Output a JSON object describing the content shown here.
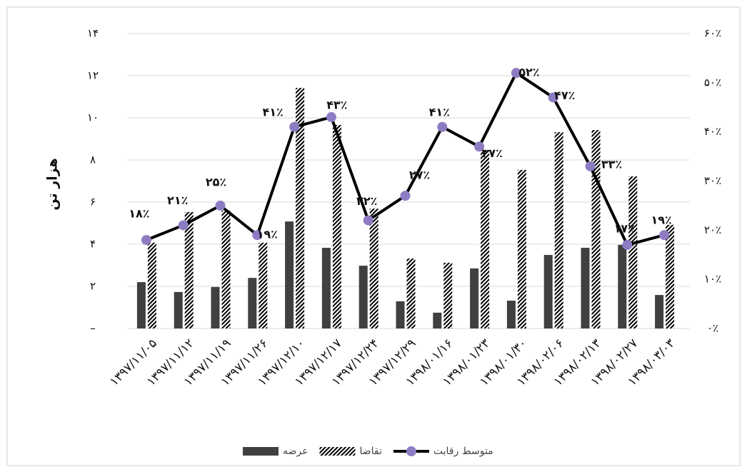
{
  "chart_data": {
    "type": "bar-line",
    "y_label": "هزار تن",
    "categories": [
      "۱۳۹۷/۱۱/۰۵",
      "۱۳۹۷/۱۱/۱۲",
      "۱۳۹۷/۱۱/۱۹",
      "۱۳۹۷/۱۱/۲۶",
      "۱۳۹۷/۱۲/۱۰",
      "۱۳۹۷/۱۲/۱۷",
      "۱۳۹۷/۱۲/۲۴",
      "۱۳۹۷/۱۲/۲۹",
      "۱۳۹۸/۰۱/۱۶",
      "۱۳۹۸/۰۱/۲۳",
      "۱۳۹۸/۰۱/۳۰",
      "۱۳۹۸/۰۲/۰۶",
      "۱۳۹۸/۰۲/۱۳",
      "۱۳۹۸/۰۲/۲۷",
      "۱۳۹۸/۰۳/۰۳"
    ],
    "series": [
      {
        "name": "عرضه",
        "type": "bar",
        "color": "#404040",
        "values": [
          2.2,
          1.73,
          1.97,
          2.4,
          5.08,
          3.83,
          2.98,
          1.29,
          0.75,
          2.85,
          1.32,
          3.49,
          3.83,
          3.97,
          1.59
        ]
      },
      {
        "name": "تقاضا",
        "type": "bar",
        "hatched": true,
        "color": "#000000",
        "values": [
          4.07,
          5.53,
          5.59,
          4.07,
          11.42,
          9.66,
          5.69,
          3.32,
          3.12,
          8.47,
          7.53,
          9.32,
          9.42,
          7.22,
          4.92
        ]
      },
      {
        "name": "متوسط رقابت",
        "type": "line",
        "axis": "y2",
        "color": "#000000",
        "marker_color": "#8e7cc3",
        "values": [
          18,
          21,
          25,
          19,
          41,
          43,
          22,
          27,
          41,
          37,
          52,
          47,
          33,
          17,
          19
        ],
        "value_labels": [
          "۱۸٪",
          "۲۱٪",
          "۲۵٪",
          "۱۹٪",
          "۴۱٪",
          "۴۳٪",
          "۲۲٪",
          "۲۷٪",
          "۴۱٪",
          "۳۷٪",
          "۵۲٪",
          "۴۷٪",
          "۳۳٪",
          "۱۷٪",
          "۱۹٪"
        ]
      }
    ],
    "ylim": [
      0,
      14
    ],
    "yticks": [
      {
        "value": 0,
        "label": "–"
      },
      {
        "value": 2,
        "label": "۲"
      },
      {
        "value": 4,
        "label": "۴"
      },
      {
        "value": 6,
        "label": "۶"
      },
      {
        "value": 8,
        "label": "۸"
      },
      {
        "value": 10,
        "label": "۱۰"
      },
      {
        "value": 12,
        "label": "۱۲"
      },
      {
        "value": 14,
        "label": "۱۴"
      }
    ],
    "y2lim": [
      0,
      60
    ],
    "y2ticks": [
      {
        "value": 0,
        "label": "۰٪"
      },
      {
        "value": 10,
        "label": "۱۰٪"
      },
      {
        "value": 20,
        "label": "۲۰٪"
      },
      {
        "value": 30,
        "label": "۳۰٪"
      },
      {
        "value": 40,
        "label": "۴۰٪"
      },
      {
        "value": 50,
        "label": "۵۰٪"
      },
      {
        "value": 60,
        "label": "۶۰٪"
      }
    ],
    "grid": true,
    "legend": "bottom"
  }
}
